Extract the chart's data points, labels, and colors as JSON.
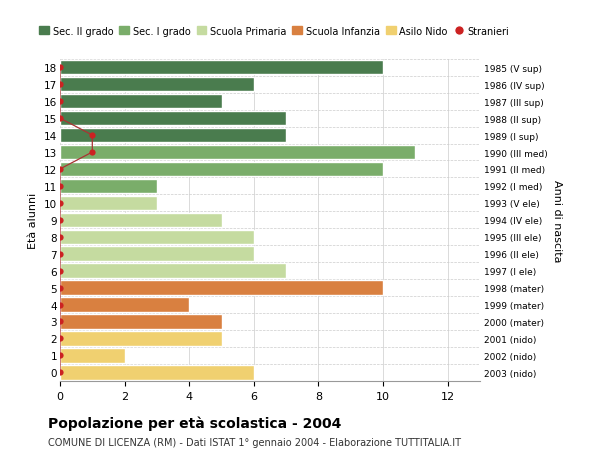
{
  "ages": [
    18,
    17,
    16,
    15,
    14,
    13,
    12,
    11,
    10,
    9,
    8,
    7,
    6,
    5,
    4,
    3,
    2,
    1,
    0
  ],
  "right_labels": [
    "1985 (V sup)",
    "1986 (IV sup)",
    "1987 (III sup)",
    "1988 (II sup)",
    "1989 (I sup)",
    "1990 (III med)",
    "1991 (II med)",
    "1992 (I med)",
    "1993 (V ele)",
    "1994 (IV ele)",
    "1995 (III ele)",
    "1996 (II ele)",
    "1997 (I ele)",
    "1998 (mater)",
    "1999 (mater)",
    "2000 (mater)",
    "2001 (nido)",
    "2002 (nido)",
    "2003 (nido)"
  ],
  "bar_values": [
    10,
    6,
    5,
    7,
    7,
    11,
    10,
    3,
    3,
    5,
    6,
    6,
    7,
    10,
    4,
    5,
    5,
    2,
    6
  ],
  "bar_colors": [
    "#4a7c4e",
    "#4a7c4e",
    "#4a7c4e",
    "#4a7c4e",
    "#4a7c4e",
    "#7aad6a",
    "#7aad6a",
    "#7aad6a",
    "#c5dba0",
    "#c5dba0",
    "#c5dba0",
    "#c5dba0",
    "#c5dba0",
    "#d98040",
    "#d98040",
    "#d98040",
    "#f0d070",
    "#f0d070",
    "#f0d070"
  ],
  "stranieri_x": [
    0,
    0,
    0,
    0,
    1,
    1,
    0,
    0,
    0,
    0,
    0,
    0,
    0,
    0,
    0,
    0,
    0,
    0,
    0
  ],
  "legend_labels": [
    "Sec. II grado",
    "Sec. I grado",
    "Scuola Primaria",
    "Scuola Infanzia",
    "Asilo Nido",
    "Stranieri"
  ],
  "legend_colors": [
    "#4a7c4e",
    "#7aad6a",
    "#c5dba0",
    "#d98040",
    "#f0d070",
    "#cc2222"
  ],
  "ylabel": "Età alunni",
  "right_ylabel": "Anni di nascita",
  "title": "Popolazione per età scolastica - 2004",
  "subtitle": "COMUNE DI LICENZA (RM) - Dati ISTAT 1° gennaio 2004 - Elaborazione TUTTITALIA.IT",
  "xlim": [
    0,
    13
  ],
  "xticks": [
    0,
    2,
    4,
    6,
    8,
    10,
    12
  ],
  "background_color": "#ffffff",
  "bar_height": 0.85,
  "stranieri_line_color": "#aa3333",
  "stranieri_dot_color": "#cc2222"
}
